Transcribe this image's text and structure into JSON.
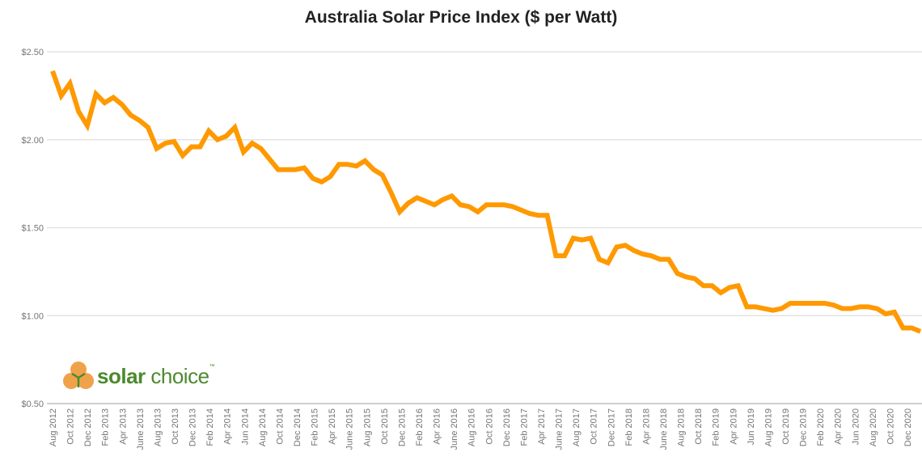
{
  "chart_data": {
    "type": "line",
    "title": "Australia Solar Price Index ($ per Watt)",
    "xlabel": "",
    "ylabel": "",
    "ylim": [
      0.5,
      2.5
    ],
    "y_ticks": [
      "$0.50",
      "$1.00",
      "$1.50",
      "$2.00",
      "$2.50"
    ],
    "y_tick_values": [
      0.5,
      1.0,
      1.5,
      2.0,
      2.5
    ],
    "grid": true,
    "x_tick_labels": [
      "Aug 2012",
      "Oct 2012",
      "Dec 2012",
      "Feb 2013",
      "Apr 2013",
      "June 2013",
      "Aug 2013",
      "Oct 2013",
      "Dec 2013",
      "Feb 2014",
      "Apr 2014",
      "Jun 2014",
      "Aug 2014",
      "Oct 2014",
      "Dec 2014",
      "Feb 2015",
      "Apr 2015",
      "June 2015",
      "Aug 2015",
      "Oct 2015",
      "Dec 2015",
      "Feb 2016",
      "Apr 2016",
      "June 2016",
      "Aug 2016",
      "Oct 2016",
      "Dec 2016",
      "Feb 2017",
      "Apr 2017",
      "June 2017",
      "Aug 2017",
      "Oct 2017",
      "Dec 2017",
      "Feb 2018",
      "Apr 2018",
      "June 2018",
      "Aug 2018",
      "Oct 2018",
      "Feb 2019",
      "Apr 2019",
      "Jun 2019",
      "Aug 2019",
      "Oct 2019",
      "Dec 2019",
      "Feb 2020",
      "Apr 2020",
      "Jun 2020",
      "Aug 2020",
      "Oct 2020",
      "Dec 2020"
    ],
    "series": [
      {
        "color": "#ff9900",
        "values": [
          2.39,
          2.25,
          2.32,
          2.16,
          2.08,
          2.26,
          2.21,
          2.24,
          2.2,
          2.14,
          2.11,
          2.07,
          1.95,
          1.98,
          1.99,
          1.91,
          1.96,
          1.96,
          2.05,
          2.0,
          2.02,
          2.07,
          1.93,
          1.98,
          1.95,
          1.89,
          1.83,
          1.83,
          1.83,
          1.84,
          1.78,
          1.76,
          1.79,
          1.86,
          1.86,
          1.85,
          1.88,
          1.83,
          1.8,
          1.7,
          1.59,
          1.64,
          1.67,
          1.65,
          1.63,
          1.66,
          1.68,
          1.63,
          1.62,
          1.59,
          1.63,
          1.63,
          1.63,
          1.62,
          1.6,
          1.58,
          1.57,
          1.57,
          1.34,
          1.34,
          1.44,
          1.43,
          1.44,
          1.32,
          1.3,
          1.39,
          1.4,
          1.37,
          1.35,
          1.34,
          1.32,
          1.32,
          1.24,
          1.22,
          1.21,
          1.17,
          1.17,
          1.13,
          1.16,
          1.17,
          1.05,
          1.05,
          1.04,
          1.03,
          1.04,
          1.07,
          1.07,
          1.07,
          1.07,
          1.07,
          1.06,
          1.04,
          1.04,
          1.05,
          1.05,
          1.04,
          1.01,
          1.02,
          0.93,
          0.93,
          0.91
        ]
      }
    ]
  },
  "logo": {
    "text_bold": "solar",
    "text_regular": "choice",
    "trademark": "™"
  }
}
